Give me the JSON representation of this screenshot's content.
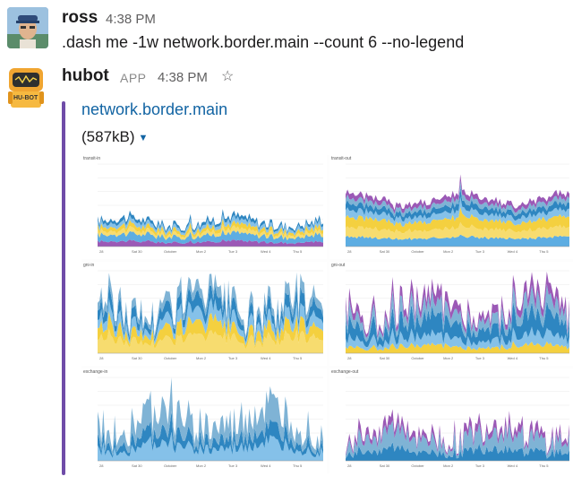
{
  "messages": [
    {
      "author": "ross",
      "time": "4:38 PM",
      "text": ".dash me -1w network.border.main --count 6 --no-legend"
    },
    {
      "author": "hubot",
      "app_tag": "APP",
      "time": "4:38 PM",
      "icons": [
        "hubot-robot-avatar",
        "star-icon"
      ],
      "avatar_text": "HU-BOT",
      "attachment": {
        "title": "network.border.main",
        "size": "(587kB)"
      }
    }
  ],
  "colors": {
    "link": "#1264a3",
    "attachment_bar": "#6f4ca8",
    "series": [
      "#9b59b6",
      "#5dade2",
      "#f7dc6f",
      "#f4d03f",
      "#85c1e9",
      "#2e86c1",
      "#7fb3d5"
    ]
  },
  "charts": [
    {
      "title": "transit-in",
      "xticks": [
        "28",
        "Sat 30",
        "October",
        "Mon 2",
        "Tue 3",
        "Wed 4",
        "Thu 5"
      ]
    },
    {
      "title": "transit-out",
      "xticks": [
        "28",
        "Sat 30",
        "October",
        "Mon 2",
        "Tue 3",
        "Wed 4",
        "Thu 5"
      ]
    },
    {
      "title": "gni-in",
      "xticks": [
        "28",
        "Sat 30",
        "October",
        "Mon 2",
        "Tue 3",
        "Wed 4",
        "Thu 5"
      ]
    },
    {
      "title": "gni-out",
      "xticks": [
        "28",
        "Sat 30",
        "October",
        "Mon 2",
        "Tue 3",
        "Wed 4",
        "Thu 5"
      ]
    },
    {
      "title": "exchange-in",
      "xticks": [
        "28",
        "Sat 30",
        "October",
        "Mon 2",
        "Tue 3",
        "Wed 4",
        "Thu 5"
      ]
    },
    {
      "title": "exchange-out",
      "xticks": [
        "28",
        "Sat 30",
        "October",
        "Mon 2",
        "Tue 3",
        "Wed 4",
        "Thu 5"
      ]
    }
  ]
}
